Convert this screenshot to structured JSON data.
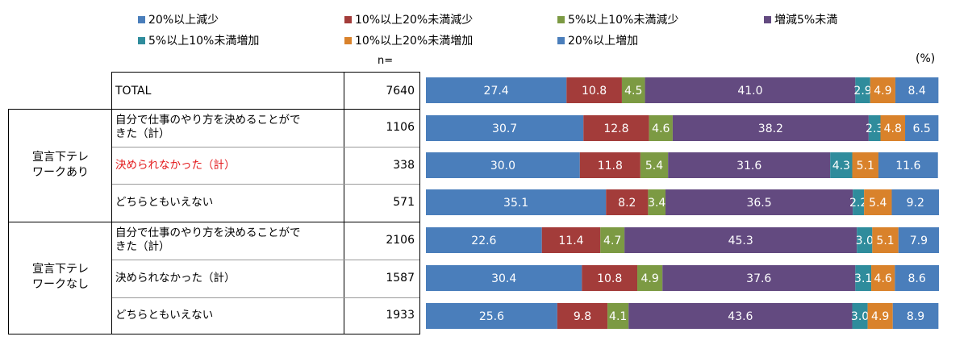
{
  "legend": [
    {
      "label": "20%以上減少",
      "color": "#4a7ebb"
    },
    {
      "label": "10%以上20%未満減少",
      "color": "#a33c3a"
    },
    {
      "label": "5%以上10%未満減少",
      "color": "#7c9a43"
    },
    {
      "label": "増減5%未満",
      "color": "#634a80"
    },
    {
      "label": "5%以上10%未満増加",
      "color": "#2f8c9c"
    },
    {
      "label": "10%以上20%未満増加",
      "color": "#d9822b"
    },
    {
      "label": "20%以上増加",
      "color": "#4a7ebb"
    }
  ],
  "n_header": "n=",
  "unit": "(%)",
  "groups": [
    {
      "label": "宣言下テレ\nワークあり"
    },
    {
      "label": "宣言下テレ\nワークなし"
    }
  ],
  "rows": [
    {
      "label": "TOTAL",
      "n": "7640",
      "highlight": false
    },
    {
      "label": "自分で仕事のやり方を決めることがで\nきた（計）",
      "n": "1106",
      "highlight": false
    },
    {
      "label": "決められなかった（計）",
      "n": "338",
      "highlight": true
    },
    {
      "label": "どちらともいえない",
      "n": "571",
      "highlight": false
    },
    {
      "label": "自分で仕事のやり方を決めることがで\nきた（計）",
      "n": "2106",
      "highlight": false
    },
    {
      "label": "決められなかった（計）",
      "n": "1587",
      "highlight": false
    },
    {
      "label": "どちらともいえない",
      "n": "1933",
      "highlight": false
    }
  ],
  "highlight_color": "#e31a1c",
  "chart_data": {
    "type": "bar",
    "stacked": true,
    "orientation": "horizontal",
    "categories": [
      "TOTAL",
      "自分で仕事のやり方を決めることができた（計）",
      "決められなかった（計）",
      "どちらともいえない",
      "自分で仕事のやり方を決めることができた（計）",
      "決められなかった（計）",
      "どちらともいえない"
    ],
    "series": [
      {
        "name": "20%以上減少",
        "color": "#4a7ebb",
        "values": [
          27.4,
          30.7,
          30.0,
          35.1,
          22.6,
          30.4,
          25.6
        ],
        "labels": [
          "27.4",
          "30.7",
          "30.0",
          "35.1",
          "22.6",
          "30.4",
          "25.6"
        ]
      },
      {
        "name": "10%以上20%未満減少",
        "color": "#a33c3a",
        "values": [
          10.8,
          12.8,
          11.8,
          8.2,
          11.4,
          10.8,
          9.8
        ],
        "labels": [
          "10.8",
          "12.8",
          "11.8",
          "8.2",
          "11.4",
          "10.8",
          "9.8"
        ]
      },
      {
        "name": "5%以上10%未満減少",
        "color": "#7c9a43",
        "values": [
          4.5,
          4.6,
          5.4,
          3.4,
          4.7,
          4.9,
          4.1
        ],
        "labels": [
          "4.5",
          "4.6",
          "5.4",
          "3.4",
          "4.7",
          "4.9",
          "4.1"
        ]
      },
      {
        "name": "増減5%未満",
        "color": "#634a80",
        "values": [
          41.0,
          38.2,
          31.6,
          36.5,
          45.3,
          37.6,
          43.6
        ],
        "labels": [
          "41.0",
          "38.2",
          "31.6",
          "36.5",
          "45.3",
          "37.6",
          "43.6"
        ]
      },
      {
        "name": "5%以上10%未満増加",
        "color": "#2f8c9c",
        "values": [
          2.9,
          2.3,
          4.3,
          2.2,
          3.0,
          3.1,
          3.0
        ],
        "labels": [
          "2.9",
          "2.3",
          "4.3",
          "2.2",
          "3.0",
          "3.1",
          "3.0"
        ]
      },
      {
        "name": "10%以上20%未満増加",
        "color": "#d9822b",
        "values": [
          4.9,
          4.8,
          5.1,
          5.4,
          5.1,
          4.6,
          4.9
        ],
        "labels": [
          "4.9",
          "4.8",
          "5.1",
          "5.4",
          "5.1",
          "4.6",
          "4.9"
        ]
      },
      {
        "name": "20%以上増加",
        "color": "#4a7ebb",
        "values": [
          8.4,
          6.5,
          11.6,
          9.2,
          7.9,
          8.6,
          8.9
        ],
        "labels": [
          "8.4",
          "6.5",
          "11.6",
          "9.2",
          "7.9",
          "8.6",
          "8.9"
        ]
      }
    ],
    "xlim": [
      0,
      100
    ]
  }
}
